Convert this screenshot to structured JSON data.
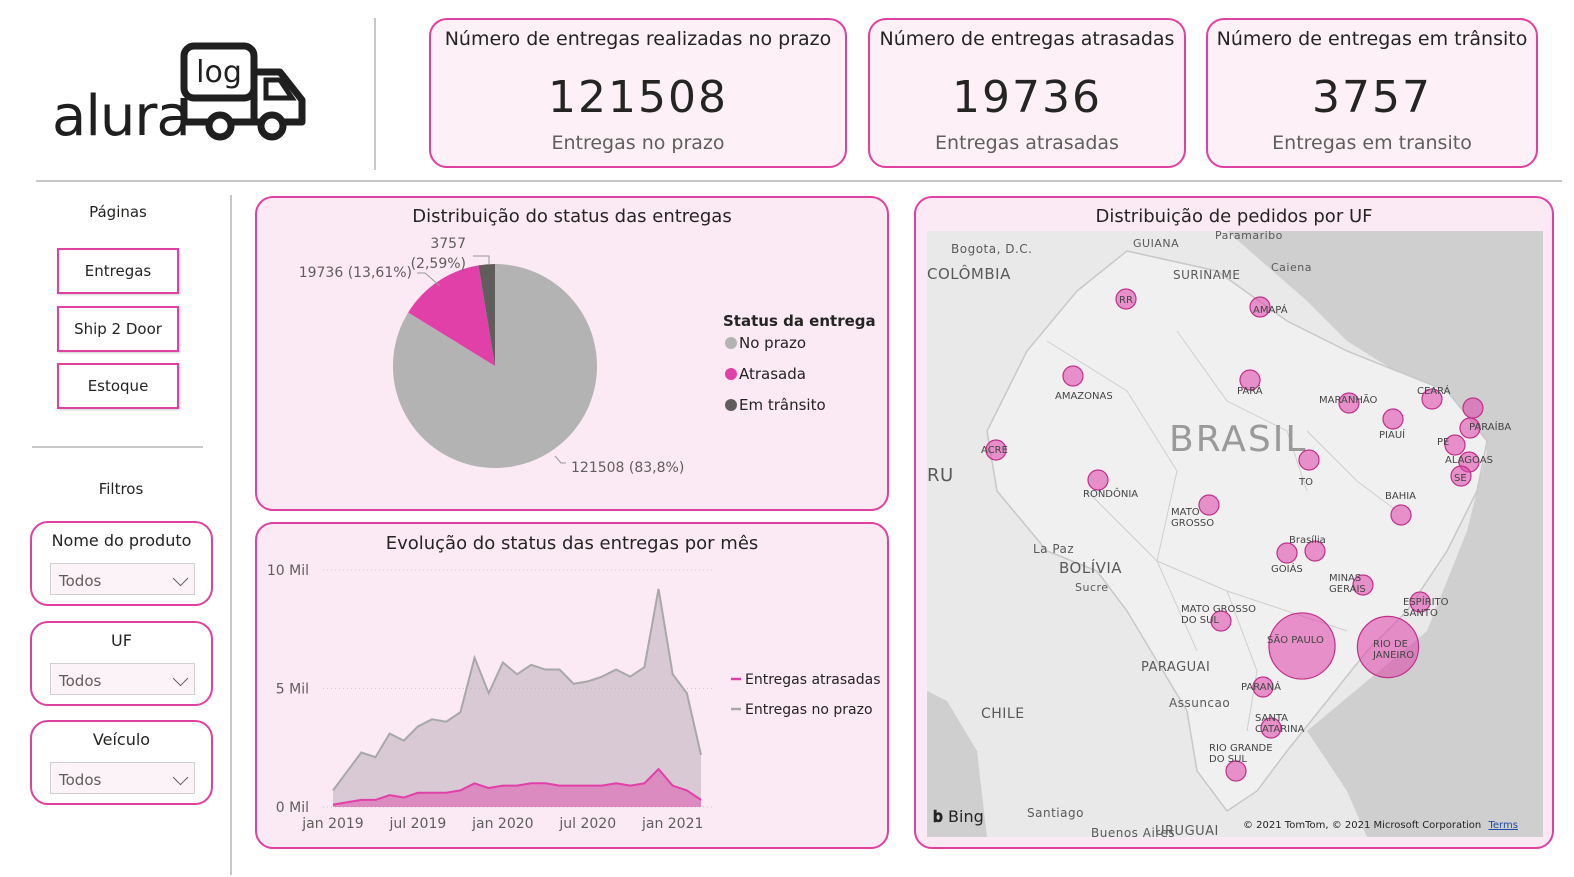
{
  "logo": {
    "word": "alura",
    "badge": "log"
  },
  "kpis": [
    {
      "title": "Número de entregas realizadas no prazo",
      "value": "121508",
      "label": "Entregas no prazo"
    },
    {
      "title": "Número de entregas atrasadas",
      "value": "19736",
      "label": "Entregas atrasadas"
    },
    {
      "title": "Número de entregas em trânsito",
      "value": "3757",
      "label": "Entregas em transito"
    }
  ],
  "sidebar": {
    "pages_title": "Páginas",
    "pages": [
      "Entregas",
      "Ship 2 Door",
      "Estoque"
    ],
    "filters_title": "Filtros",
    "filters": [
      {
        "title": "Nome do produto",
        "value": "Todos"
      },
      {
        "title": "UF",
        "value": "Todos"
      },
      {
        "title": "Veículo",
        "value": "Todos"
      }
    ]
  },
  "colors": {
    "accent": "#e040a0",
    "on_time": "#b3b3b3",
    "late": "#e040a8",
    "in_transit": "#605e5c"
  },
  "chart_data": [
    {
      "type": "pie",
      "title": "Distribuição do status das entregas",
      "legend_title": "Status da entrega",
      "legend_position": "right",
      "slices": [
        {
          "name": "No prazo",
          "value": 121508,
          "label": "121508 (83,8%)"
        },
        {
          "name": "Atrasada",
          "value": 19736,
          "label": "19736 (13,61%)"
        },
        {
          "name": "Em trânsito",
          "value": 3757,
          "label": "3757 (2,59%)"
        }
      ]
    },
    {
      "type": "area",
      "title": "Evolução do status das entregas por mês",
      "legend_position": "right",
      "ylim": [
        0,
        10
      ],
      "y_ticks": [
        "0 Mil",
        "5 Mil",
        "10 Mil"
      ],
      "y_tick_values": [
        0,
        5,
        10
      ],
      "x_ticks": [
        "jan 2019",
        "jul 2019",
        "jan 2020",
        "jul 2020",
        "jan 2021"
      ],
      "x": [
        "2019-01",
        "2019-02",
        "2019-03",
        "2019-04",
        "2019-05",
        "2019-06",
        "2019-07",
        "2019-08",
        "2019-09",
        "2019-10",
        "2019-11",
        "2019-12",
        "2020-01",
        "2020-02",
        "2020-03",
        "2020-04",
        "2020-05",
        "2020-06",
        "2020-07",
        "2020-08",
        "2020-09",
        "2020-10",
        "2020-11",
        "2020-12",
        "2021-01",
        "2021-02",
        "2021-03"
      ],
      "series": [
        {
          "name": "Entregas atrasadas",
          "values": [
            0.1,
            0.2,
            0.3,
            0.3,
            0.5,
            0.4,
            0.6,
            0.6,
            0.6,
            0.7,
            1.0,
            0.8,
            0.9,
            0.9,
            1.0,
            1.0,
            0.9,
            0.9,
            0.9,
            0.9,
            1.0,
            0.9,
            1.0,
            1.6,
            0.9,
            0.7,
            0.3
          ]
        },
        {
          "name": "Entregas no prazo",
          "values": [
            0.7,
            1.5,
            2.3,
            2.1,
            3.1,
            2.8,
            3.4,
            3.7,
            3.6,
            4.0,
            6.3,
            4.8,
            6.1,
            5.6,
            6.0,
            5.8,
            5.8,
            5.2,
            5.3,
            5.5,
            5.8,
            5.5,
            5.9,
            9.2,
            5.6,
            4.8,
            2.2
          ]
        }
      ]
    },
    {
      "type": "bubble-map",
      "title": "Distribuição de pedidos por UF",
      "points": [
        {
          "name": "RR",
          "label": "RR",
          "size": 1
        },
        {
          "name": "AP",
          "label": "AMAPÁ",
          "size": 1
        },
        {
          "name": "AM",
          "label": "AMAZONAS",
          "size": 1
        },
        {
          "name": "PA",
          "label": "PARÁ",
          "size": 1
        },
        {
          "name": "MA",
          "label": "MARANHÃO",
          "size": 1
        },
        {
          "name": "CE",
          "label": "CEARÁ",
          "size": 1
        },
        {
          "name": "RN",
          "label": "",
          "size": 1
        },
        {
          "name": "PB",
          "label": "PARAÍBA",
          "size": 1
        },
        {
          "name": "PE",
          "label": "PE",
          "size": 1
        },
        {
          "name": "AL",
          "label": "ALAGOAS",
          "size": 1
        },
        {
          "name": "SE",
          "label": "SE",
          "size": 1
        },
        {
          "name": "PI",
          "label": "PIAUÍ",
          "size": 1
        },
        {
          "name": "AC",
          "label": "ACRE",
          "size": 1
        },
        {
          "name": "RO",
          "label": "RONDÔNIA",
          "size": 1
        },
        {
          "name": "TO",
          "label": "TO",
          "size": 1
        },
        {
          "name": "MT",
          "label": "MATO GROSSO",
          "size": 1
        },
        {
          "name": "BA",
          "label": "BAHIA",
          "size": 1
        },
        {
          "name": "DF",
          "label": "Brasília",
          "size": 1
        },
        {
          "name": "GO",
          "label": "GOIÁS",
          "size": 1
        },
        {
          "name": "MG",
          "label": "MINAS GERAIS",
          "size": 1
        },
        {
          "name": "ES",
          "label": "ESPÍRITO SANTO",
          "size": 1
        },
        {
          "name": "MS",
          "label": "MATO GROSSO DO SUL",
          "size": 1
        },
        {
          "name": "SP",
          "label": "SÃO PAULO",
          "size": 7
        },
        {
          "name": "RJ",
          "label": "RIO DE JANEIRO",
          "size": 6
        },
        {
          "name": "PR",
          "label": "PARANÁ",
          "size": 1
        },
        {
          "name": "SC",
          "label": "SANTA CATARINA",
          "size": 1
        },
        {
          "name": "RS",
          "label": "RIO GRANDE DO SUL",
          "size": 1
        }
      ],
      "map_labels": [
        "Bogota, D.C.",
        "COLÔMBIA",
        "GUIANA",
        "SURINAME",
        "Paramaribo",
        "Caiena",
        "BRASIL",
        "RU",
        "La Paz",
        "BOLÍVIA",
        "Sucre",
        "PARAGUAI",
        "Assuncao",
        "CHILE",
        "Santiago",
        "Buenos Aires",
        "URUGUAI"
      ],
      "attribution": "© 2021 TomTom, © 2021 Microsoft Corporation",
      "terms": "Terms",
      "provider": "Bing"
    }
  ]
}
